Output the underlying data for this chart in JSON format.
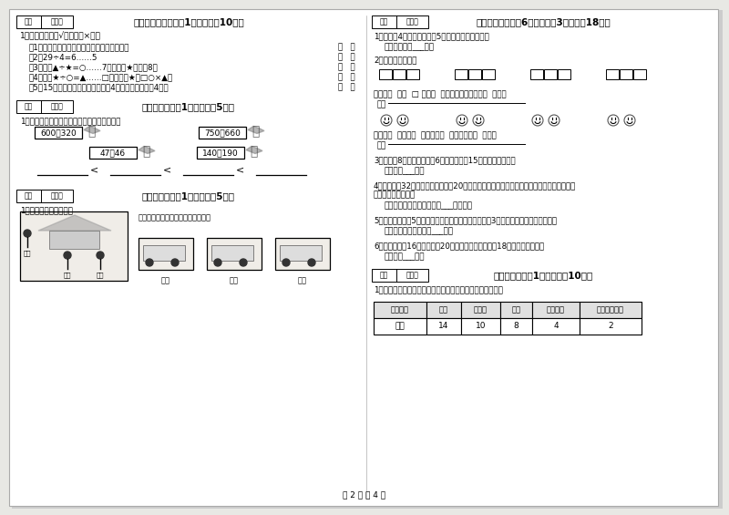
{
  "bg_color": "#e8e8e4",
  "page_bg": "#ffffff",
  "page_number": "第 2 页 共 4 页",
  "score_box_labels": [
    "得分",
    "评卷人"
  ],
  "sec5_header": "五、判断对与错（共1大题，共计10分）",
  "sec5_q1": "1、判断（对的打√，错的打×）。",
  "sec5_items": [
    "（1）在有余数除法里，余数一定要比除数小。",
    "（2）29÷4=6……5",
    "（3）如果▲÷★=○……7，那么，★最小是8。",
    "（4）如果★÷○=▲……□，那么，★＝□○×▲。",
    "（5）15个人乘船过河，每次可过去4人，全部过去需要4次。"
  ],
  "sec6_header": "六、比一比（共1大题，共计5分）",
  "sec6_q1": "1、把下列算式按得数大小，从小到大排一行。",
  "sec6_exprs": [
    "600－320",
    "750－660",
    "47＋46",
    "140＋190"
  ],
  "sec7_header": "七、连一连（共1大题，共计5分）",
  "sec7_q1": "1、根据物体，选一选。",
  "sec7_prompt": "请你连一连，下面分别是谁看到的？",
  "sec7_names": [
    "小虹",
    "小东",
    "小明"
  ],
  "sec8_header": "八、解决问题（共6小题，每题3分，共计18分）",
  "sec8_q1": "1、小东买4支圆珠笔，每支5元，一共用了多少钱？",
  "sec8_a1": "答：一共用了___元。",
  "sec8_q2": "2、我会解决问题。",
  "sec8_q2_text1": "一共有（  ）个  □ ，每（  ）个一组，平均分成（  ）组。",
  "sec8_q2_list1": "列式",
  "sec8_q2_text2": "一共有（  ）个笑脸  平均分成（  ）组，每组（  ）个。",
  "sec8_q2_list2": "列式",
  "sec8_q3": "3、老师有8袋乒乓球，每袋6个，借给同学15个，还剩多少个？",
  "sec8_a3": "答：还剩___个。",
  "sec8_q4a": "4、学校买了32把剪刀，分给三年级20把，剩下的平均分给二年级和一年级，二年级和一年级",
  "sec8_q4b": "各分到多少把剪刀？",
  "sec8_a4": "答：二年级和一年级各分到___把剪刀。",
  "sec8_q5": "5、二年级一班有5个红皮球，黄皮球的个数是红皮球的3倍，黄皮球比红皮球多几个？",
  "sec8_a5": "答：黄皮球比红皮球多___个。",
  "sec8_q6": "6、同学们摘了16只纸风车，20只花风车，送给幼儿园18只，还有多少只？",
  "sec8_a6": "答：还有___只。",
  "sec10_header": "十、综合题（共1大题，共计10分）",
  "sec10_q1": "1、下是张老师调查本班同学最喜欢的业余生活情况统计表。",
  "table_headers": [
    "活动项目",
    "看书",
    "看电视",
    "旅游",
    "体育运动",
    "其他业余活动"
  ],
  "table_row": [
    "人数",
    "14",
    "10",
    "8",
    "4",
    "2"
  ]
}
